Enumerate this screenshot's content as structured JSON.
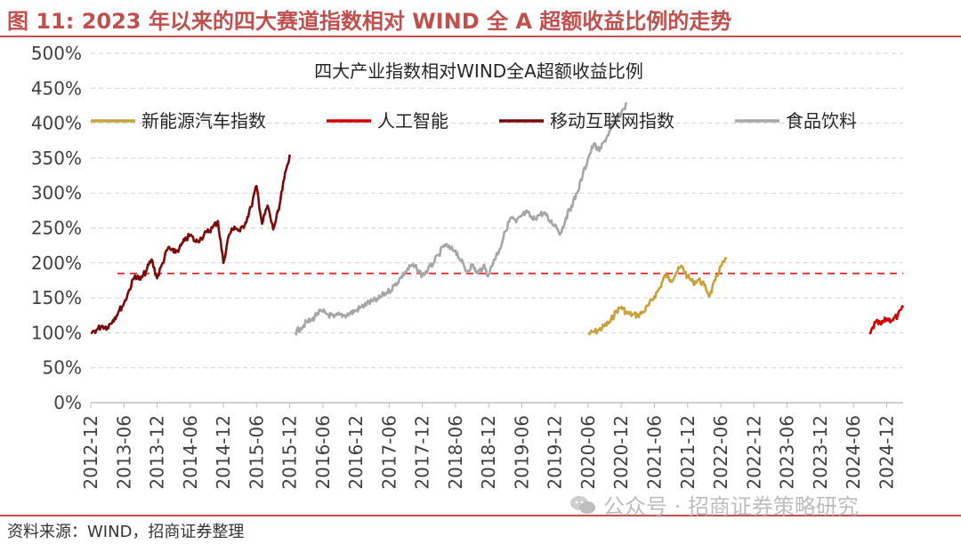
{
  "figure_title": "图 11: 2023 年以来的四大赛道指数相对 WIND 全 A 超额收益比例的走势",
  "source_note": "资料来源：WIND，招商证券整理",
  "watermark": "公众号 · 招商证券策略研究",
  "chart_data": {
    "type": "line",
    "title": "四大产业指数相对WIND全A超额收益比例",
    "xlabel": "",
    "ylabel": "",
    "ylim": [
      0,
      500
    ],
    "y_ticks": [
      0,
      50,
      100,
      150,
      200,
      250,
      300,
      350,
      400,
      450,
      500
    ],
    "y_tick_labels": [
      "0%",
      "50%",
      "100%",
      "150%",
      "200%",
      "250%",
      "300%",
      "350%",
      "400%",
      "450%",
      "500%"
    ],
    "x_range": [
      "2012-12",
      "2025-03"
    ],
    "x_tick_labels": [
      "2012-12",
      "2013-06",
      "2013-12",
      "2014-06",
      "2014-12",
      "2015-06",
      "2015-12",
      "2016-06",
      "2016-12",
      "2017-06",
      "2017-12",
      "2018-06",
      "2018-12",
      "2019-06",
      "2019-12",
      "2020-06",
      "2020-12",
      "2021-06",
      "2021-12",
      "2022-06",
      "2022-12",
      "2023-06",
      "2023-12",
      "2024-06",
      "2024-12"
    ],
    "grid": true,
    "legend_position": "top",
    "reference_line": {
      "value": 185,
      "color": "#e02020",
      "style": "dashed"
    },
    "series": [
      {
        "name": "新能源汽车指数",
        "color": "#c9a13a",
        "points": [
          [
            "2020-06",
            98
          ],
          [
            "2020-07",
            101
          ],
          [
            "2020-08",
            104
          ],
          [
            "2020-09",
            110
          ],
          [
            "2020-10",
            116
          ],
          [
            "2020-11",
            130
          ],
          [
            "2020-12",
            137
          ],
          [
            "2021-01",
            128
          ],
          [
            "2021-02",
            126
          ],
          [
            "2021-03",
            125
          ],
          [
            "2021-04",
            130
          ],
          [
            "2021-05",
            140
          ],
          [
            "2021-06",
            152
          ],
          [
            "2021-07",
            165
          ],
          [
            "2021-08",
            183
          ],
          [
            "2021-09",
            175
          ],
          [
            "2021-10",
            187
          ],
          [
            "2021-11",
            195
          ],
          [
            "2021-12",
            180
          ],
          [
            "2022-01",
            172
          ],
          [
            "2022-02",
            176
          ],
          [
            "2022-03",
            168
          ],
          [
            "2022-04",
            153
          ],
          [
            "2022-05",
            175
          ],
          [
            "2022-06",
            195
          ],
          [
            "2022-07",
            205
          ]
        ]
      },
      {
        "name": "人工智能",
        "color": "#d00000",
        "points": [
          [
            "2024-09",
            98
          ],
          [
            "2024-10",
            115
          ],
          [
            "2024-11",
            112
          ],
          [
            "2024-12",
            120
          ],
          [
            "2025-01",
            118
          ],
          [
            "2025-02",
            124
          ],
          [
            "2025-03",
            136
          ]
        ]
      },
      {
        "name": "移动互联网指数",
        "color": "#7a0a0a",
        "points": [
          [
            "2012-12",
            100
          ],
          [
            "2013-01",
            104
          ],
          [
            "2013-02",
            110
          ],
          [
            "2013-03",
            108
          ],
          [
            "2013-04",
            118
          ],
          [
            "2013-05",
            130
          ],
          [
            "2013-06",
            142
          ],
          [
            "2013-07",
            162
          ],
          [
            "2013-08",
            182
          ],
          [
            "2013-09",
            176
          ],
          [
            "2013-10",
            188
          ],
          [
            "2013-11",
            205
          ],
          [
            "2013-12",
            178
          ],
          [
            "2014-01",
            200
          ],
          [
            "2014-02",
            222
          ],
          [
            "2014-03",
            215
          ],
          [
            "2014-04",
            220
          ],
          [
            "2014-05",
            232
          ],
          [
            "2014-06",
            240
          ],
          [
            "2014-07",
            230
          ],
          [
            "2014-08",
            236
          ],
          [
            "2014-09",
            244
          ],
          [
            "2014-10",
            250
          ],
          [
            "2014-11",
            260
          ],
          [
            "2014-12",
            200
          ],
          [
            "2015-01",
            240
          ],
          [
            "2015-02",
            252
          ],
          [
            "2015-03",
            245
          ],
          [
            "2015-04",
            258
          ],
          [
            "2015-05",
            280
          ],
          [
            "2015-06",
            310
          ],
          [
            "2015-07",
            256
          ],
          [
            "2015-08",
            282
          ],
          [
            "2015-09",
            248
          ],
          [
            "2015-10",
            275
          ],
          [
            "2015-11",
            320
          ],
          [
            "2015-12",
            355
          ]
        ]
      },
      {
        "name": "食品饮料",
        "color": "#a6a6a6",
        "points": [
          [
            "2016-01",
            100
          ],
          [
            "2016-02",
            107
          ],
          [
            "2016-03",
            115
          ],
          [
            "2016-04",
            118
          ],
          [
            "2016-05",
            128
          ],
          [
            "2016-06",
            130
          ],
          [
            "2016-07",
            126
          ],
          [
            "2016-08",
            122
          ],
          [
            "2016-09",
            126
          ],
          [
            "2016-10",
            125
          ],
          [
            "2016-11",
            128
          ],
          [
            "2016-12",
            132
          ],
          [
            "2017-01",
            137
          ],
          [
            "2017-02",
            142
          ],
          [
            "2017-03",
            145
          ],
          [
            "2017-04",
            148
          ],
          [
            "2017-05",
            155
          ],
          [
            "2017-06",
            160
          ],
          [
            "2017-07",
            168
          ],
          [
            "2017-08",
            178
          ],
          [
            "2017-09",
            188
          ],
          [
            "2017-10",
            196
          ],
          [
            "2017-11",
            192
          ],
          [
            "2017-12",
            182
          ],
          [
            "2018-01",
            190
          ],
          [
            "2018-02",
            200
          ],
          [
            "2018-03",
            212
          ],
          [
            "2018-04",
            226
          ],
          [
            "2018-05",
            220
          ],
          [
            "2018-06",
            218
          ],
          [
            "2018-07",
            203
          ],
          [
            "2018-08",
            188
          ],
          [
            "2018-09",
            197
          ],
          [
            "2018-10",
            185
          ],
          [
            "2018-11",
            195
          ],
          [
            "2018-12",
            183
          ],
          [
            "2019-01",
            205
          ],
          [
            "2019-02",
            220
          ],
          [
            "2019-03",
            245
          ],
          [
            "2019-04",
            265
          ],
          [
            "2019-05",
            258
          ],
          [
            "2019-06",
            268
          ],
          [
            "2019-07",
            272
          ],
          [
            "2019-08",
            262
          ],
          [
            "2019-09",
            268
          ],
          [
            "2019-10",
            272
          ],
          [
            "2019-11",
            260
          ],
          [
            "2019-12",
            255
          ],
          [
            "2020-01",
            242
          ],
          [
            "2020-02",
            265
          ],
          [
            "2020-03",
            282
          ],
          [
            "2020-04",
            300
          ],
          [
            "2020-05",
            325
          ],
          [
            "2020-06",
            350
          ],
          [
            "2020-07",
            370
          ],
          [
            "2020-08",
            360
          ],
          [
            "2020-09",
            375
          ],
          [
            "2020-10",
            390
          ],
          [
            "2020-11",
            402
          ],
          [
            "2020-12",
            415
          ],
          [
            "2021-01",
            428
          ]
        ]
      }
    ]
  }
}
